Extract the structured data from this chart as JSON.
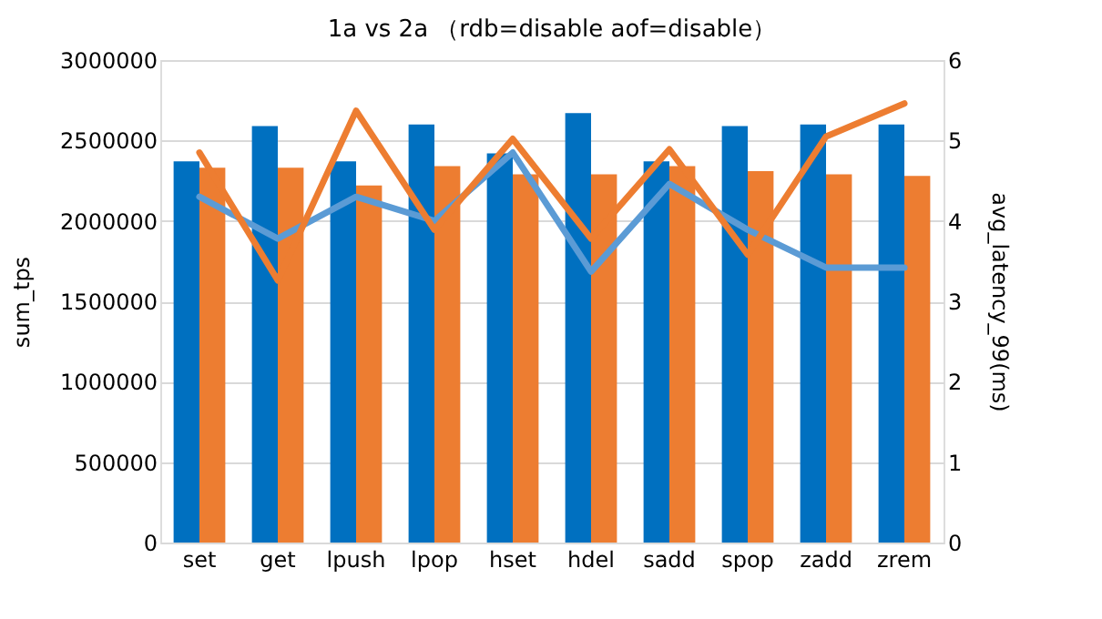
{
  "chart_data": {
    "type": "bar",
    "title": "1a vs 2a （rdb=disable aof=disable）",
    "categories": [
      "set",
      "get",
      "lpush",
      "lpop",
      "hset",
      "hdel",
      "sadd",
      "spop",
      "zadd",
      "zrem"
    ],
    "series": [
      {
        "color": "#0070c0",
        "values": [
          2370000,
          2590000,
          2370000,
          2600000,
          2420000,
          2670000,
          2370000,
          2590000,
          2600000,
          2600000
        ]
      },
      {
        "color": "#ed7d31",
        "values": [
          2330000,
          2330000,
          2220000,
          2340000,
          2290000,
          2290000,
          2340000,
          2310000,
          2290000,
          2280000
        ]
      },
      {
        "type": "line",
        "axis": "y2",
        "color": "#5b9bd5",
        "values": [
          4.3,
          3.78,
          4.3,
          4.0,
          4.85,
          3.37,
          4.46,
          3.89,
          3.42,
          3.42
        ]
      },
      {
        "type": "line",
        "axis": "y2",
        "color": "#ed7d31",
        "values": [
          4.85,
          3.26,
          5.37,
          3.89,
          5.02,
          3.78,
          4.89,
          3.58,
          5.05,
          5.46
        ]
      }
    ],
    "ylabel": "sum_tps",
    "y2label": "avg_latency_99(ms)",
    "ylim": [
      0,
      3000000
    ],
    "yticks": [
      0,
      500000,
      1000000,
      1500000,
      2000000,
      2500000,
      3000000
    ],
    "y2lim": [
      0,
      6
    ],
    "y2ticks": [
      0,
      1,
      2,
      3,
      4,
      5,
      6
    ],
    "grid": "y",
    "legend": false,
    "marker": "none",
    "line_style": "solid"
  }
}
